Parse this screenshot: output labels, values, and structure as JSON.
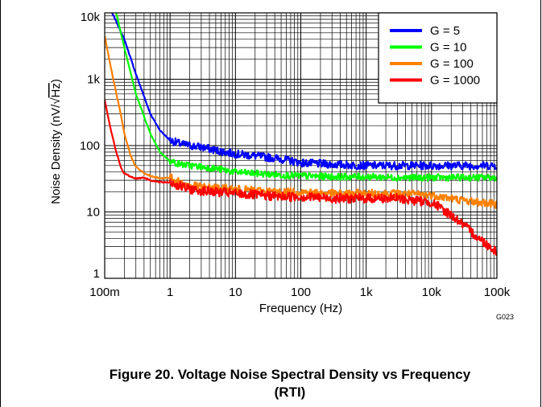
{
  "chart_data": {
    "type": "line",
    "xscale": "log",
    "yscale": "log",
    "xlim": [
      0.1,
      100000
    ],
    "ylim": [
      1,
      10000
    ],
    "xlabel": "Frequency (Hz)",
    "ylabel_prefix": "Noise Density (nV/",
    "ylabel_radical": "√",
    "ylabel_radicand": "Hz",
    "ylabel_suffix": ")",
    "xticks": [
      {
        "value": 0.1,
        "label": "100m"
      },
      {
        "value": 1,
        "label": "1"
      },
      {
        "value": 10,
        "label": "10"
      },
      {
        "value": 100,
        "label": "100"
      },
      {
        "value": 1000,
        "label": "1k"
      },
      {
        "value": 10000,
        "label": "10k"
      },
      {
        "value": 100000,
        "label": "100k"
      }
    ],
    "yticks": [
      {
        "value": 1,
        "label": "1"
      },
      {
        "value": 10,
        "label": "10"
      },
      {
        "value": 100,
        "label": "100"
      },
      {
        "value": 1000,
        "label": "1k"
      },
      {
        "value": 10000,
        "label": "10k"
      }
    ],
    "grid": true,
    "legend_position": "top-right",
    "code": "G023",
    "series": [
      {
        "name": "G = 5",
        "color": "#0000ff",
        "x": [
          0.13,
          0.2,
          0.3,
          0.5,
          0.7,
          1,
          1.5,
          2,
          3,
          5,
          10,
          20,
          50,
          100,
          300,
          1000,
          3000,
          10000,
          30000,
          100000
        ],
        "y": [
          10000,
          4000,
          1200,
          300,
          170,
          120,
          105,
          100,
          95,
          85,
          75,
          70,
          63,
          55,
          52,
          50,
          50,
          50,
          50,
          50
        ],
        "noise": 0.12
      },
      {
        "name": "G = 10",
        "color": "#00ff00",
        "x": [
          0.15,
          0.2,
          0.3,
          0.5,
          0.7,
          1,
          1.5,
          2,
          3,
          5,
          10,
          20,
          50,
          100,
          300,
          1000,
          3000,
          10000,
          30000,
          100000
        ],
        "y": [
          10000,
          3000,
          600,
          150,
          80,
          58,
          52,
          50,
          48,
          45,
          40,
          38,
          36,
          35,
          34,
          34,
          33,
          33,
          33,
          33
        ],
        "noise": 0.1
      },
      {
        "name": "G = 100",
        "color": "#ff8000",
        "x": [
          0.1,
          0.13,
          0.17,
          0.2,
          0.25,
          0.3,
          0.4,
          0.5,
          0.7,
          1,
          1.5,
          2,
          3,
          5,
          10,
          20,
          50,
          100,
          300,
          1000,
          3000,
          10000,
          30000,
          100000
        ],
        "y": [
          4500,
          1200,
          350,
          150,
          70,
          48,
          38,
          35,
          32,
          33,
          27,
          25,
          24,
          23,
          22,
          21,
          20,
          20,
          19,
          19,
          19,
          18,
          15,
          13
        ],
        "noise": 0.12
      },
      {
        "name": "G = 1000",
        "color": "#ff0000",
        "x": [
          0.1,
          0.12,
          0.15,
          0.18,
          0.2,
          0.25,
          0.3,
          0.4,
          0.5,
          0.7,
          1,
          1.5,
          2,
          3,
          5,
          10,
          20,
          50,
          100,
          300,
          1000,
          3000,
          5000,
          10000,
          20000,
          30000,
          50000,
          100000
        ],
        "y": [
          500,
          200,
          80,
          45,
          38,
          34,
          32,
          33,
          30,
          28,
          28,
          24,
          22,
          21,
          20,
          19,
          18,
          17,
          17,
          16,
          16,
          16,
          15,
          14,
          9,
          6.5,
          4.2,
          2.5
        ],
        "noise": 0.14
      }
    ]
  },
  "caption": {
    "line1": "Figure 20. Voltage Noise Spectral Density vs Frequency",
    "line2": "(RTI)"
  }
}
